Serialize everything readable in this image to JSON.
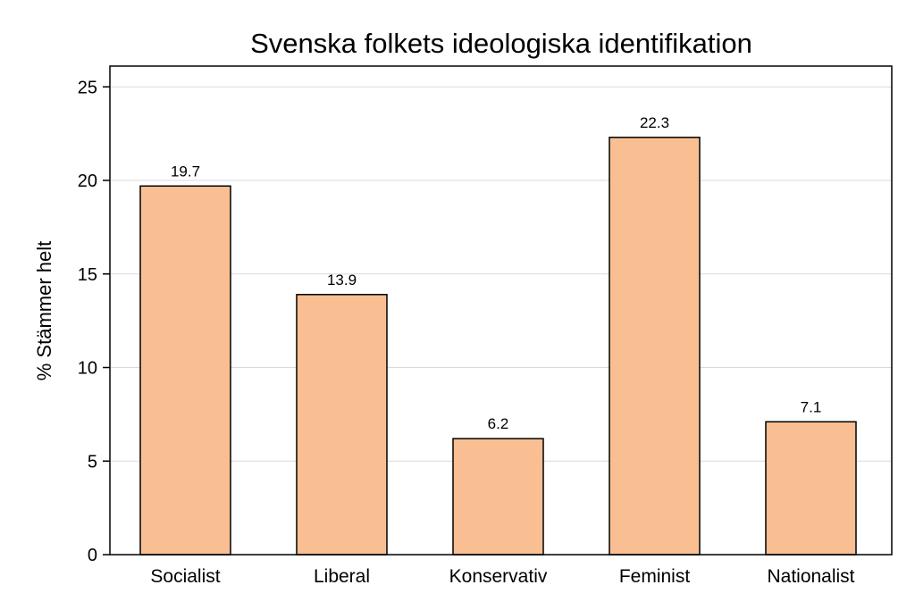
{
  "chart_data": {
    "type": "bar",
    "title": "Svenska folkets ideologiska identifikation",
    "xlabel": "",
    "ylabel": "% Stämmer helt",
    "categories": [
      "Socialist",
      "Liberal",
      "Konservativ",
      "Feminist",
      "Nationalist"
    ],
    "values": [
      19.7,
      13.9,
      6.2,
      22.3,
      7.1
    ],
    "data_labels": [
      "19.7",
      "13.9",
      "6.2",
      "22.3",
      "7.1"
    ],
    "ylim": [
      0,
      26
    ],
    "yticks": [
      0,
      5,
      10,
      15,
      20,
      25
    ],
    "grid": true,
    "legend": "none",
    "colors": {
      "bar_fill": "#f9bf93",
      "bar_stroke": "#000000",
      "grid": "#d9d9d9"
    }
  }
}
